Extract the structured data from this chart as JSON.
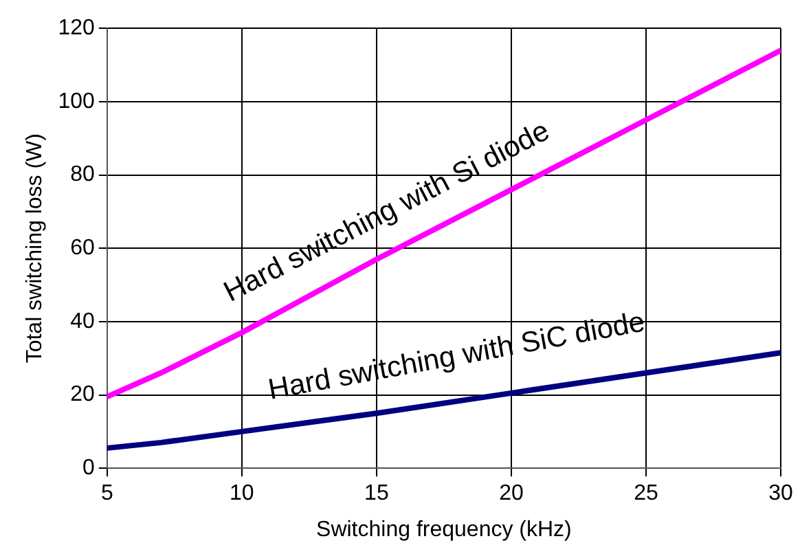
{
  "chart_data": {
    "type": "line",
    "xlabel": "Switching frequency (kHz)",
    "ylabel": "Total switching loss (W)",
    "x": [
      5,
      7,
      10,
      15,
      20,
      25,
      30
    ],
    "series": [
      {
        "name": "Hard switching with Si diode",
        "color": "#ff00ff",
        "values": [
          19.5,
          26,
          37,
          57,
          76,
          95,
          114
        ]
      },
      {
        "name": "Hard switching with SiC diode",
        "color": "#000080",
        "values": [
          5.5,
          7,
          10,
          15,
          20.5,
          26,
          31.5
        ]
      }
    ],
    "xlim": [
      5,
      30
    ],
    "xticks": [
      5,
      10,
      15,
      20,
      25,
      30
    ],
    "ylim": [
      0,
      120
    ],
    "yticks": [
      0,
      20,
      40,
      60,
      80,
      100,
      120
    ],
    "grid": true,
    "legend": false,
    "marker": "none",
    "line_style": "solid"
  }
}
